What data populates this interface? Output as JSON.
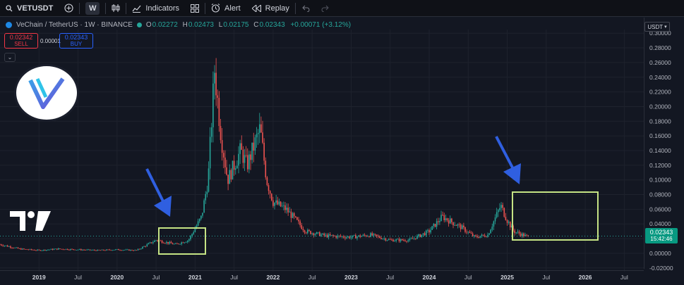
{
  "toolbar": {
    "symbol": "VETUSDT",
    "interval": "W",
    "indicators_label": "Indicators",
    "alert_label": "Alert",
    "replay_label": "Replay"
  },
  "legend": {
    "title": "VeChain / TetherUS · 1W · BINANCE",
    "o_label": "O",
    "o_value": "0.02272",
    "h_label": "H",
    "h_value": "0.02473",
    "l_label": "L",
    "l_value": "0.02175",
    "c_label": "C",
    "c_value": "0.02343",
    "change": "+0.00071 (+3.12%)"
  },
  "trade": {
    "sell_price": "0.02342",
    "sell_label": "SELL",
    "buy_price": "0.02343",
    "buy_label": "BUY",
    "spread": "0.00001"
  },
  "currency_button": "USDT",
  "current_price": {
    "price": "0.02343",
    "countdown": "15:42:46"
  },
  "colors": {
    "up": "#26a69a",
    "down": "#ef5350",
    "highlight_box": "#c5e384",
    "arrow": "#2f5fe0",
    "background": "#131722"
  },
  "icons": [
    "add-symbol-icon",
    "bar-style-icon",
    "indicators-icon",
    "templates-icon",
    "alert-icon",
    "replay-icon",
    "undo-icon",
    "redo-icon",
    "vechain-logo",
    "tradingview-logo"
  ],
  "chart_data": {
    "type": "candlestick",
    "y_axis": {
      "ticks": [
        "0.30000",
        "0.28000",
        "0.26000",
        "0.24000",
        "0.22000",
        "0.20000",
        "0.18000",
        "0.16000",
        "0.14000",
        "0.12000",
        "0.10000",
        "0.08000",
        "0.06000",
        "0.04000",
        "0.02000",
        "0.00000",
        "-0.02000"
      ],
      "ylim": [
        -0.025,
        0.305
      ]
    },
    "x_axis": {
      "ticks": [
        "2019",
        "Jul",
        "2020",
        "Jul",
        "2021",
        "Jul",
        "2022",
        "Jul",
        "2023",
        "Jul",
        "2024",
        "Jul",
        "2025",
        "Jul",
        "2026",
        "Jul"
      ],
      "range": [
        "2018-07",
        "2026-10"
      ]
    },
    "series": [
      {
        "x": [
          "2018-07",
          "2018-10",
          "2019-01",
          "2019-04",
          "2019-07",
          "2019-10",
          "2020-01",
          "2020-04",
          "2020-07",
          "2020-10",
          "2020-12",
          "2021-02",
          "2021-03",
          "2021-04",
          "2021-05",
          "2021-06",
          "2021-08",
          "2021-09",
          "2021-11",
          "2021-12",
          "2022-01",
          "2022-03",
          "2022-04",
          "2022-06",
          "2022-09",
          "2023-01",
          "2023-04",
          "2023-07",
          "2023-10",
          "2024-01",
          "2024-03",
          "2024-04",
          "2024-06",
          "2024-08",
          "2024-10",
          "2024-12",
          "2025-01",
          "2025-02",
          "2025-04"
        ],
        "close": [
          0.012,
          0.006,
          0.004,
          0.006,
          0.005,
          0.004,
          0.005,
          0.004,
          0.018,
          0.012,
          0.018,
          0.05,
          0.1,
          0.25,
          0.16,
          0.1,
          0.14,
          0.12,
          0.17,
          0.1,
          0.07,
          0.06,
          0.05,
          0.03,
          0.024,
          0.022,
          0.025,
          0.018,
          0.018,
          0.03,
          0.05,
          0.045,
          0.035,
          0.022,
          0.025,
          0.065,
          0.045,
          0.03,
          0.023
        ]
      }
    ],
    "annotations": [
      "highlight box around 2020 rally",
      "highlight box around late-2024 rally",
      "blue arrows pointing to both boxes"
    ]
  }
}
